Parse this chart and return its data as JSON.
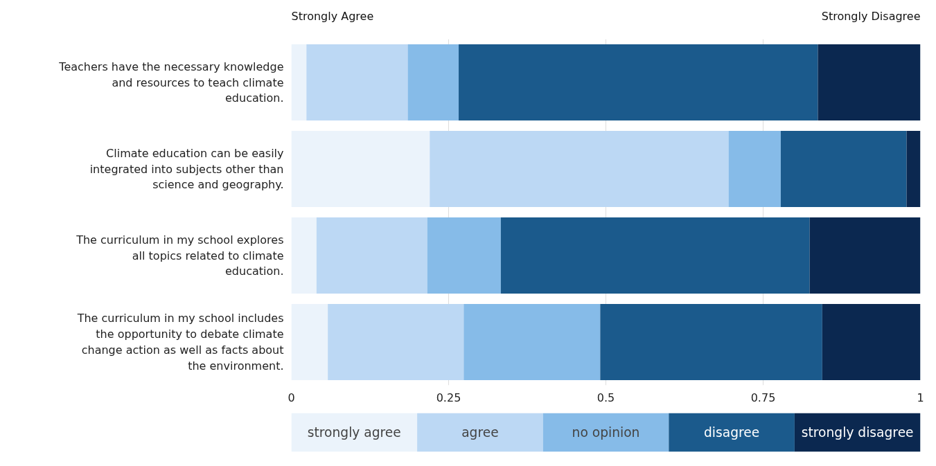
{
  "chart_data": {
    "type": "bar",
    "orientation": "horizontal",
    "stacked": true,
    "categories": [
      "Teachers have the necessary knowledge and resources to teach climate education.",
      "Climate education can be easily integrated into subjects other than science and geography.",
      "The curriculum in my school explores all topics related to climate education.",
      "The curriculum in my school includes the opportunity to debate climate change action as well as facts about the environment."
    ],
    "series": [
      {
        "name": "strongly agree",
        "color": "#ebf3fb",
        "values": [
          0.024,
          0.22,
          0.04,
          0.058
        ]
      },
      {
        "name": "agree",
        "color": "#bcd8f4",
        "values": [
          0.161,
          0.475,
          0.176,
          0.216
        ]
      },
      {
        "name": "no opinion",
        "color": "#86bbe8",
        "values": [
          0.081,
          0.083,
          0.117,
          0.217
        ]
      },
      {
        "name": "disagree",
        "color": "#1b5a8c",
        "values": [
          0.571,
          0.2,
          0.491,
          0.353
        ]
      },
      {
        "name": "strongly disagree",
        "color": "#0b2850",
        "values": [
          0.163,
          0.022,
          0.176,
          0.156
        ]
      }
    ],
    "xlim": [
      0,
      1
    ],
    "xticks": [
      0,
      0.25,
      0.5,
      0.75,
      1
    ],
    "grid": "x",
    "legend": "bottom",
    "annotations": [
      "Strongly Agree",
      "Strongly Disagree"
    ]
  }
}
